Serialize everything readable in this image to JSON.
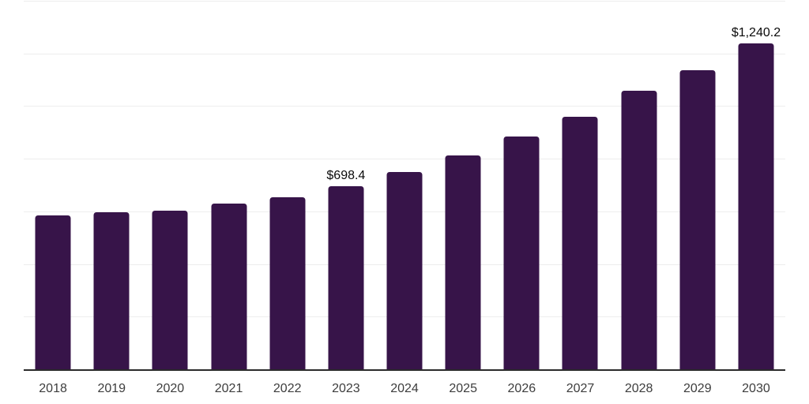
{
  "chart_data": {
    "type": "bar",
    "title": "",
    "categories": [
      "2018",
      "2019",
      "2020",
      "2021",
      "2022",
      "2023",
      "2024",
      "2025",
      "2026",
      "2027",
      "2028",
      "2029",
      "2030"
    ],
    "values": [
      587,
      600,
      605,
      632,
      656,
      698.4,
      754,
      814,
      886,
      963,
      1062,
      1138,
      1240.2
    ],
    "data_labels": [
      {
        "index": 5,
        "text": "$698.4"
      },
      {
        "index": 12,
        "text": "$1,240.2"
      }
    ],
    "ylim": [
      0,
      1400
    ],
    "grid_step": 200,
    "grid": "horizontal",
    "legend": "none",
    "xlabel": "",
    "ylabel": ""
  },
  "style": {
    "bar_color": "#371449",
    "grid_color": "#ededed",
    "axis_color": "#2b2b2b",
    "tick_label_color": "#3d3d3d",
    "data_label_color": "#0a0a0a",
    "background": "#ffffff"
  }
}
